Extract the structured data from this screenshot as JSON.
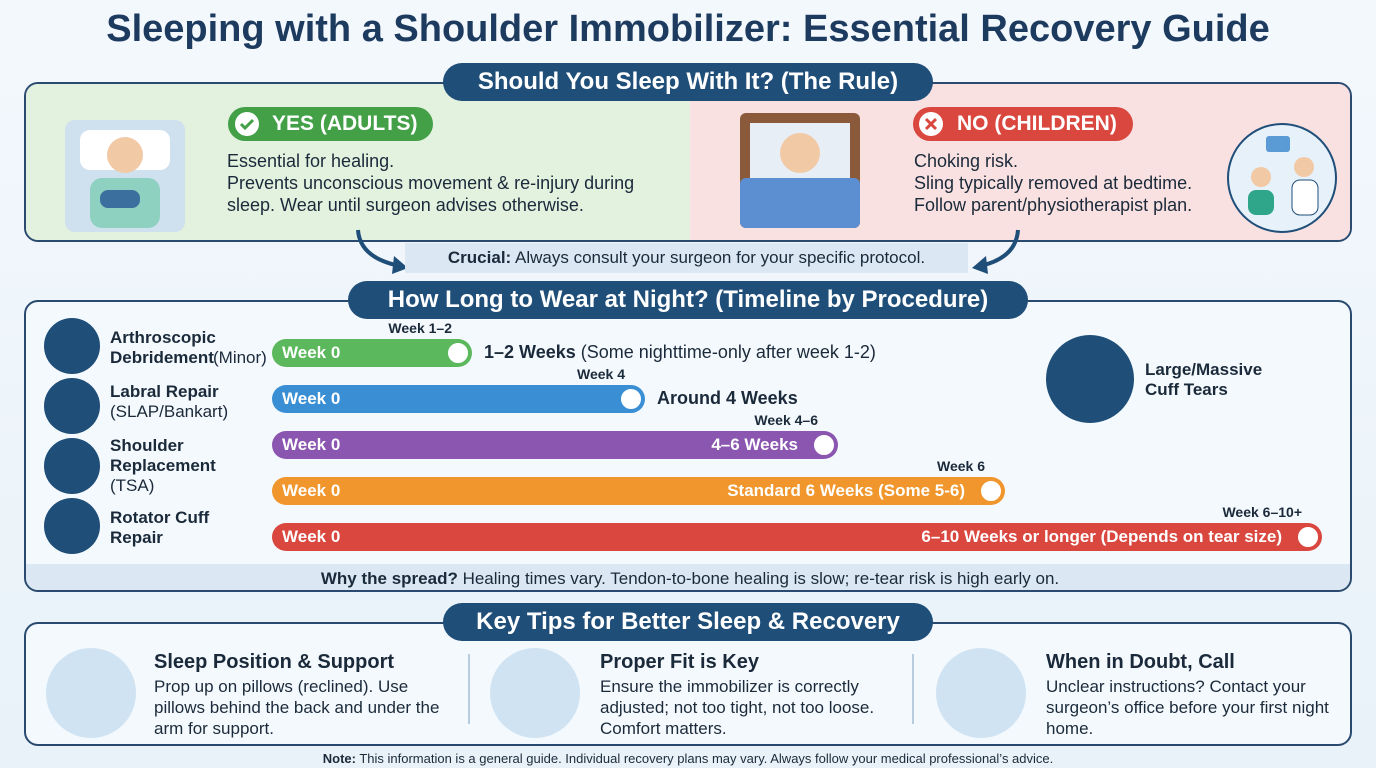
{
  "title": "Sleeping with a Shoulder Immobilizer: Essential Recovery Guide",
  "rule": {
    "heading": "Should You Sleep With It? (The Rule)",
    "yes": {
      "badge": "YES (ADULTS)",
      "lines": [
        "Essential for healing.",
        "Prevents unconscious movement & re-injury during sleep. Wear until surgeon advises otherwise."
      ]
    },
    "no": {
      "badge": "NO (CHILDREN)",
      "lines": [
        "Choking risk.",
        "Sling typically removed at bedtime.",
        "Follow parent/physiotherapist plan."
      ]
    },
    "crucial": {
      "label": "Crucial:",
      "text": "Always consult your surgeon for your specific protocol."
    }
  },
  "timeline": {
    "heading": "How Long to Wear at Night? (Timeline by Procedure)",
    "procedures": [
      {
        "name": "Arthroscopic Debridement",
        "qualifier": "(Minor)"
      },
      {
        "name": "Labral Repair",
        "qualifier": "(SLAP/Bankart)"
      },
      {
        "name": "Shoulder Replacement",
        "qualifier": "(TSA)"
      },
      {
        "name": "Rotator Cuff Repair"
      }
    ],
    "bars": [
      {
        "start": "Week 0",
        "end": "Week 1–2",
        "label": "1–2 Weeks",
        "note": "(Some nighttime-only after week 1-2)"
      },
      {
        "start": "Week 0",
        "end": "Week 4",
        "label": "Around 4 Weeks"
      },
      {
        "start": "Week 0",
        "end": "Week 4–6",
        "label": "4–6 Weeks"
      },
      {
        "start": "Week 0",
        "end": "Week 6",
        "label": "Standard 6 Weeks (Some 5-6)"
      },
      {
        "start": "Week 0",
        "end": "Week 6–10+",
        "label": "6–10 Weeks or longer (Depends on tear size)"
      }
    ],
    "side": "Large/Massive Cuff Tears",
    "spread": {
      "label": "Why the spread?",
      "text": "Healing times vary. Tendon-to-bone healing is slow; re-tear risk is high early on."
    }
  },
  "tips": {
    "heading": "Key Tips for Better Sleep & Recovery",
    "items": [
      {
        "title": "Sleep Position & Support",
        "text": "Prop up on pillows (reclined). Use pillows behind the back and under the arm for support."
      },
      {
        "title": "Proper Fit is Key",
        "text": "Ensure the immobilizer is correctly adjusted; not too tight, not too loose. Comfort matters."
      },
      {
        "title": "When in Doubt, Call",
        "text": "Unclear instructions? Contact your surgeon’s office before your first night home."
      }
    ]
  },
  "note": {
    "label": "Note:",
    "text": "This information is a general guide. Individual recovery plans may vary. Always follow your medical professional’s advice."
  }
}
